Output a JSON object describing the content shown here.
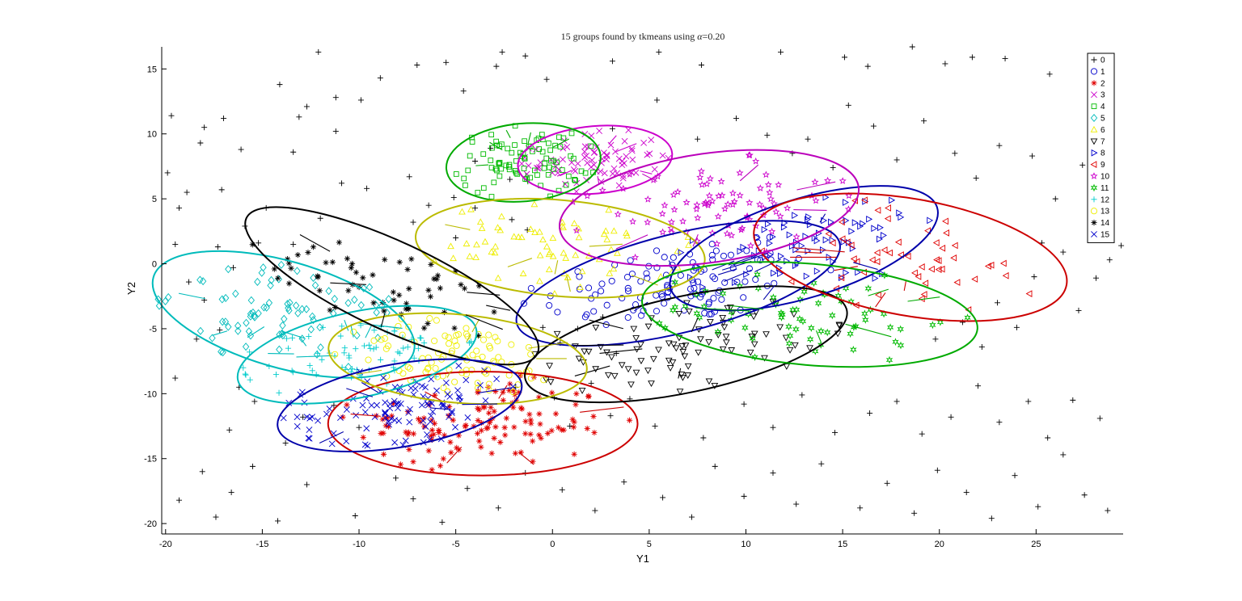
{
  "chart_data": {
    "type": "scatter",
    "title_prefix": "15 groups found by tkmeans using ",
    "title_symbol": "α",
    "title_suffix": "=0.20",
    "xlabel": "Y1",
    "ylabel": "Y2",
    "xlim": [
      -20.2,
      29.5
    ],
    "ylim": [
      -20.8,
      16.7
    ],
    "xticks": [
      -20,
      -15,
      -10,
      -5,
      0,
      5,
      10,
      15,
      20,
      25
    ],
    "yticks": [
      -20,
      -15,
      -10,
      -5,
      0,
      5,
      10,
      15
    ],
    "grid": false,
    "legend_position": "top-right",
    "series": [
      {
        "name": "0",
        "marker": "plus",
        "color": "#000000"
      },
      {
        "name": "1",
        "marker": "circle",
        "color": "#0000cc"
      },
      {
        "name": "2",
        "marker": "asterisk",
        "color": "#e00000"
      },
      {
        "name": "3",
        "marker": "x",
        "color": "#cc00cc"
      },
      {
        "name": "4",
        "marker": "square",
        "color": "#00bb00"
      },
      {
        "name": "5",
        "marker": "diamond",
        "color": "#00bbbb"
      },
      {
        "name": "6",
        "marker": "triangle-up",
        "color": "#eeee00"
      },
      {
        "name": "7",
        "marker": "triangle-down",
        "color": "#000000"
      },
      {
        "name": "8",
        "marker": "triangle-right",
        "color": "#0000cc"
      },
      {
        "name": "9",
        "marker": "triangle-left",
        "color": "#e00000"
      },
      {
        "name": "10",
        "marker": "pentagram",
        "color": "#cc00cc"
      },
      {
        "name": "11",
        "marker": "hexagram",
        "color": "#00bb00"
      },
      {
        "name": "12",
        "marker": "plus",
        "color": "#00cccc"
      },
      {
        "name": "13",
        "marker": "circle",
        "color": "#eeee00"
      },
      {
        "name": "14",
        "marker": "asterisk",
        "color": "#000000"
      },
      {
        "name": "15",
        "marker": "x",
        "color": "#0000cc"
      }
    ],
    "ellipses": [
      {
        "group": "1",
        "cx": 6.5,
        "cy": -1.5,
        "rx": 8.6,
        "ry": 3.8,
        "angle": 14,
        "color": "#0000aa",
        "count": 110
      },
      {
        "group": "2",
        "cx": -3.6,
        "cy": -12.3,
        "rx": 8.0,
        "ry": 4.0,
        "angle": 0,
        "color": "#cc0000",
        "count": 130
      },
      {
        "group": "3",
        "cx": 2.2,
        "cy": 8.0,
        "rx": 4.0,
        "ry": 2.6,
        "angle": 5,
        "color": "#cc00cc",
        "count": 80
      },
      {
        "group": "4",
        "cx": -1.5,
        "cy": 7.8,
        "rx": 4.0,
        "ry": 3.0,
        "angle": 5,
        "color": "#00aa00",
        "count": 90
      },
      {
        "group": "5",
        "cx": -13.9,
        "cy": -3.9,
        "rx": 7.0,
        "ry": 4.1,
        "angle": -16,
        "color": "#00bbbb",
        "count": 80
      },
      {
        "group": "6",
        "cx": 0.4,
        "cy": 1.2,
        "rx": 7.5,
        "ry": 3.7,
        "angle": -5,
        "color": "#bbbb00",
        "count": 70
      },
      {
        "group": "7",
        "cx": 6.9,
        "cy": -6.2,
        "rx": 8.5,
        "ry": 3.7,
        "angle": 12,
        "color": "#000000",
        "count": 90
      },
      {
        "group": "8",
        "cx": 13.0,
        "cy": 1.2,
        "rx": 7.2,
        "ry": 3.8,
        "angle": 17,
        "color": "#0000aa",
        "count": 75
      },
      {
        "group": "9",
        "cx": 18.5,
        "cy": 0.5,
        "rx": 8.2,
        "ry": 4.5,
        "angle": -10,
        "color": "#cc0000",
        "count": 55
      },
      {
        "group": "10",
        "cx": 8.1,
        "cy": 4.3,
        "rx": 7.8,
        "ry": 4.2,
        "angle": 8,
        "color": "#bb00bb",
        "count": 90
      },
      {
        "group": "11",
        "cx": 13.3,
        "cy": -3.9,
        "rx": 8.7,
        "ry": 3.9,
        "angle": -5,
        "color": "#00aa00",
        "count": 70
      },
      {
        "group": "12",
        "cx": -10.1,
        "cy": -7.0,
        "rx": 6.3,
        "ry": 3.3,
        "angle": 12,
        "color": "#00bbbb",
        "count": 70
      },
      {
        "group": "13",
        "cx": -4.9,
        "cy": -7.3,
        "rx": 6.7,
        "ry": 3.4,
        "angle": -5,
        "color": "#bbbb00",
        "count": 90
      },
      {
        "group": "14",
        "cx": -8.3,
        "cy": -1.7,
        "rx": 8.3,
        "ry": 3.4,
        "angle": -25,
        "color": "#000000",
        "count": 60
      },
      {
        "group": "15",
        "cx": -7.9,
        "cy": -10.9,
        "rx": 6.4,
        "ry": 3.2,
        "angle": 10,
        "color": "#0000aa",
        "count": 110
      }
    ],
    "noise_points": [
      [
        -19.7,
        11.4
      ],
      [
        -18.0,
        10.5
      ],
      [
        -17.0,
        11.2
      ],
      [
        -14.1,
        13.8
      ],
      [
        -13.1,
        11.3
      ],
      [
        -12.1,
        16.3
      ],
      [
        -11.2,
        12.8
      ],
      [
        -9.9,
        12.6
      ],
      [
        -8.9,
        14.3
      ],
      [
        -7.0,
        15.3
      ],
      [
        -5.5,
        15.5
      ],
      [
        -4.6,
        13.3
      ],
      [
        -2.9,
        15.2
      ],
      [
        -2.6,
        16.3
      ],
      [
        -1.4,
        16.0
      ],
      [
        -0.3,
        14.2
      ],
      [
        3.1,
        15.6
      ],
      [
        5.5,
        16.3
      ],
      [
        7.7,
        15.3
      ],
      [
        11.8,
        16.3
      ],
      [
        15.1,
        15.9
      ],
      [
        16.3,
        15.2
      ],
      [
        18.6,
        16.7
      ],
      [
        20.3,
        15.4
      ],
      [
        21.7,
        15.9
      ],
      [
        23.4,
        15.8
      ],
      [
        25.7,
        14.6
      ],
      [
        28.6,
        11.5
      ],
      [
        -19.9,
        7.0
      ],
      [
        -19.3,
        4.3
      ],
      [
        -18.9,
        5.5
      ],
      [
        -18.2,
        9.3
      ],
      [
        -17.1,
        5.7
      ],
      [
        -16.1,
        8.8
      ],
      [
        -14.8,
        4.3
      ],
      [
        -13.4,
        8.6
      ],
      [
        -12.7,
        12.1
      ],
      [
        -11.2,
        10.2
      ],
      [
        -10.9,
        6.2
      ],
      [
        -9.6,
        5.8
      ],
      [
        -7.4,
        6.7
      ],
      [
        -6.4,
        4.5
      ],
      [
        -5.1,
        5.1
      ],
      [
        -4.0,
        7.9
      ],
      [
        -3.2,
        8.9
      ],
      [
        -2.2,
        6.5
      ],
      [
        3.1,
        10.4
      ],
      [
        5.4,
        12.6
      ],
      [
        7.5,
        9.6
      ],
      [
        9.5,
        11.2
      ],
      [
        11.1,
        9.9
      ],
      [
        12.4,
        8.5
      ],
      [
        13.2,
        9.6
      ],
      [
        14.5,
        7.4
      ],
      [
        15.3,
        12.2
      ],
      [
        16.6,
        10.6
      ],
      [
        17.8,
        8.0
      ],
      [
        19.2,
        11.0
      ],
      [
        20.8,
        8.5
      ],
      [
        21.9,
        6.6
      ],
      [
        23.1,
        9.1
      ],
      [
        24.8,
        8.3
      ],
      [
        26.0,
        5.0
      ],
      [
        27.4,
        7.6
      ],
      [
        28.9,
        7.0
      ],
      [
        29.4,
        1.4
      ],
      [
        -19.5,
        1.5
      ],
      [
        -18.8,
        -1.4
      ],
      [
        -18.0,
        -2.8
      ],
      [
        -17.3,
        1.3
      ],
      [
        -16.5,
        -0.3
      ],
      [
        -15.9,
        2.9
      ],
      [
        -15.2,
        1.6
      ],
      [
        -13.4,
        1.5
      ],
      [
        -12.0,
        3.5
      ],
      [
        -7.2,
        3.2
      ],
      [
        -5.0,
        2.0
      ],
      [
        -4.0,
        4.3
      ],
      [
        -2.1,
        3.4
      ],
      [
        -1.3,
        2.6
      ],
      [
        -0.5,
        -4.9
      ],
      [
        0.4,
        -6.1
      ],
      [
        1.3,
        -5.0
      ],
      [
        2.6,
        -4.1
      ],
      [
        3.3,
        -6.9
      ],
      [
        19.8,
        -5.8
      ],
      [
        21.2,
        -4.5
      ],
      [
        22.2,
        -6.4
      ],
      [
        23.0,
        -3.0
      ],
      [
        24.0,
        -4.9
      ],
      [
        24.9,
        -1.0
      ],
      [
        25.3,
        1.6
      ],
      [
        26.4,
        0.9
      ],
      [
        27.2,
        -3.6
      ],
      [
        28.1,
        -1.1
      ],
      [
        28.8,
        0.3
      ],
      [
        -19.5,
        -8.8
      ],
      [
        -18.4,
        -5.8
      ],
      [
        -17.2,
        -5.1
      ],
      [
        -16.2,
        -9.5
      ],
      [
        -16.7,
        -12.8
      ],
      [
        -15.4,
        -10.6
      ],
      [
        -13.8,
        -13.8
      ],
      [
        -12.9,
        -11.8
      ],
      [
        -11.3,
        -10.9
      ],
      [
        -10.0,
        -12.6
      ],
      [
        -1.9,
        -9.5
      ],
      [
        0.1,
        -10.3
      ],
      [
        0.9,
        -12.5
      ],
      [
        2.0,
        -9.2
      ],
      [
        3.0,
        -11.7
      ],
      [
        4.0,
        -10.4
      ],
      [
        5.3,
        -12.5
      ],
      [
        7.8,
        -13.4
      ],
      [
        9.9,
        -10.8
      ],
      [
        11.4,
        -12.6
      ],
      [
        12.9,
        -10.1
      ],
      [
        14.6,
        -13.0
      ],
      [
        16.4,
        -11.5
      ],
      [
        17.8,
        -10.6
      ],
      [
        19.1,
        -13.1
      ],
      [
        20.6,
        -11.8
      ],
      [
        22.0,
        -9.4
      ],
      [
        23.1,
        -12.2
      ],
      [
        24.6,
        -10.6
      ],
      [
        25.6,
        -13.4
      ],
      [
        26.9,
        -10.5
      ],
      [
        28.3,
        -11.9
      ],
      [
        -19.3,
        -18.2
      ],
      [
        -18.1,
        -16.0
      ],
      [
        -17.4,
        -19.5
      ],
      [
        -16.6,
        -17.6
      ],
      [
        -15.5,
        -15.6
      ],
      [
        -14.2,
        -19.8
      ],
      [
        -12.7,
        -17.0
      ],
      [
        -10.2,
        -19.4
      ],
      [
        -8.1,
        -16.5
      ],
      [
        -7.2,
        -18.1
      ],
      [
        -5.7,
        -19.9
      ],
      [
        -4.4,
        -17.3
      ],
      [
        -2.8,
        -18.8
      ],
      [
        -1.4,
        -16.1
      ],
      [
        0.5,
        -17.4
      ],
      [
        2.2,
        -19.0
      ],
      [
        3.7,
        -16.8
      ],
      [
        5.7,
        -18.0
      ],
      [
        7.2,
        -19.5
      ],
      [
        8.4,
        -15.6
      ],
      [
        9.9,
        -17.9
      ],
      [
        11.4,
        -16.1
      ],
      [
        12.6,
        -18.5
      ],
      [
        13.9,
        -15.4
      ],
      [
        15.9,
        -18.8
      ],
      [
        17.3,
        -16.9
      ],
      [
        18.7,
        -19.2
      ],
      [
        19.9,
        -15.9
      ],
      [
        21.4,
        -17.6
      ],
      [
        22.7,
        -19.6
      ],
      [
        23.9,
        -16.3
      ],
      [
        25.1,
        -18.7
      ],
      [
        26.4,
        -14.7
      ],
      [
        27.5,
        -17.8
      ],
      [
        28.7,
        -19.0
      ]
    ],
    "legend_entries": [
      "0",
      "1",
      "2",
      "3",
      "4",
      "5",
      "6",
      "7",
      "8",
      "9",
      "10",
      "11",
      "12",
      "13",
      "14",
      "15"
    ]
  }
}
